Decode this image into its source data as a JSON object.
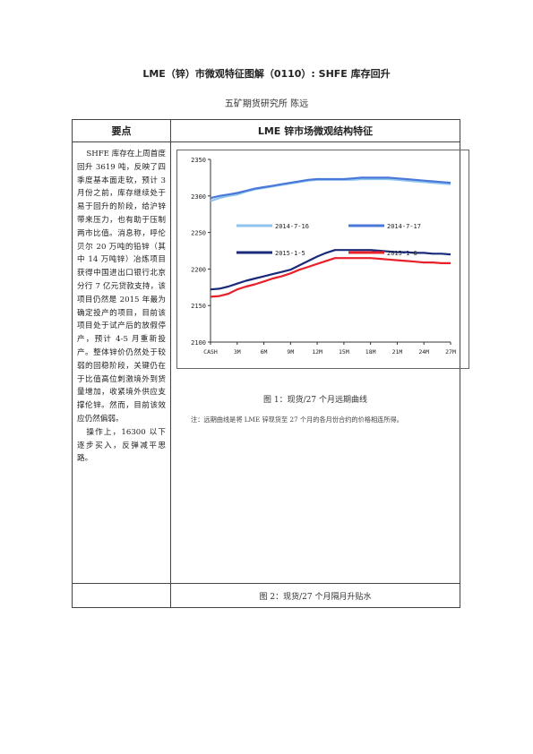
{
  "document": {
    "title": "LME（锌）市微观特征图解（0110）: SHFE 库存回升",
    "author": "五矿期货研究所   陈远"
  },
  "table": {
    "col1_header": "要点",
    "col2_header": "LME 锌市场微观结构特征",
    "summary_p1": "SHFE 库存在上周首度回升 3619 吨，反映了四季度基本面走软，预计 3 月份之前，库存继续处于易于回升的阶段，给沪锌带来压力，也有助于压制两市比值。消息称，呼伦贝尔 20 万吨的铅锌（其中 14 万吨锌）冶炼项目获得中国进出口银行北京分行 7 亿元贷款支持，该项目仍然是 2015 年最为确定投产的项目，目前该项目处于试产后的放假停产，预计 4-5 月重新投产。整体锌价仍然处于较弱的回稳阶段，关键仍在于比值高位刺激境外到货量增加，收紧境外供应支撑伦锌。然而，目前该效应仍然偏弱。",
    "summary_p2": "操作上，16300 以下逐步买入，反弹减平思路。",
    "figure1_caption": "图 1：现货/27 个月远期曲线",
    "figure1_note": "注：远期曲线是将 LME 锌现货至 27 个月的各月份合约的价格相连所得。",
    "figure2_caption": "图 2：现货/27 个月隔月升贴水"
  },
  "chart_data": {
    "type": "line",
    "x": [
      "CASH",
      "1M",
      "2M",
      "3M",
      "4M",
      "5M",
      "6M",
      "7M",
      "8M",
      "9M",
      "10M",
      "11M",
      "12M",
      "13M",
      "14M",
      "15M",
      "16M",
      "17M",
      "18M",
      "19M",
      "20M",
      "21M",
      "22M",
      "23M",
      "24M",
      "25M",
      "26M",
      "27M"
    ],
    "x_tick_labels": [
      "CASH",
      "3M",
      "6M",
      "9M",
      "12M",
      "15M",
      "18M",
      "21M",
      "24M",
      "27M"
    ],
    "ylim": [
      2100,
      2350
    ],
    "y_ticks": [
      2100,
      2150,
      2200,
      2250,
      2300,
      2350
    ],
    "legend_placement": "inside-middle",
    "series": [
      {
        "name": "2014-7-16",
        "color": "#8cc4ee",
        "values": [
          2293,
          2297,
          2300,
          2302,
          2306,
          2309,
          2311,
          2313,
          2315,
          2317,
          2319,
          2321,
          2322,
          2322,
          2322,
          2322,
          2322,
          2323,
          2323,
          2323,
          2323,
          2322,
          2321,
          2320,
          2319,
          2318,
          2317,
          2316
        ]
      },
      {
        "name": "2014-7-17",
        "color": "#4a78d8",
        "values": [
          2297,
          2300,
          2302,
          2304,
          2307,
          2310,
          2312,
          2314,
          2316,
          2318,
          2320,
          2322,
          2323,
          2323,
          2323,
          2323,
          2324,
          2325,
          2325,
          2325,
          2325,
          2324,
          2323,
          2322,
          2321,
          2320,
          2319,
          2318
        ]
      },
      {
        "name": "2015-1-5",
        "color": "#1a2a7a",
        "values": [
          2172,
          2173,
          2176,
          2180,
          2184,
          2187,
          2190,
          2193,
          2196,
          2199,
          2205,
          2211,
          2217,
          2222,
          2226,
          2226,
          2226,
          2226,
          2226,
          2225,
          2224,
          2223,
          2223,
          2222,
          2222,
          2221,
          2221,
          2220
        ]
      },
      {
        "name": "2015-1-6",
        "color": "#e8202a",
        "values": [
          2162,
          2163,
          2166,
          2172,
          2176,
          2179,
          2183,
          2187,
          2190,
          2194,
          2199,
          2203,
          2207,
          2211,
          2215,
          2215,
          2215,
          2215,
          2215,
          2214,
          2213,
          2212,
          2211,
          2210,
          2209,
          2209,
          2208,
          2208
        ]
      }
    ]
  }
}
